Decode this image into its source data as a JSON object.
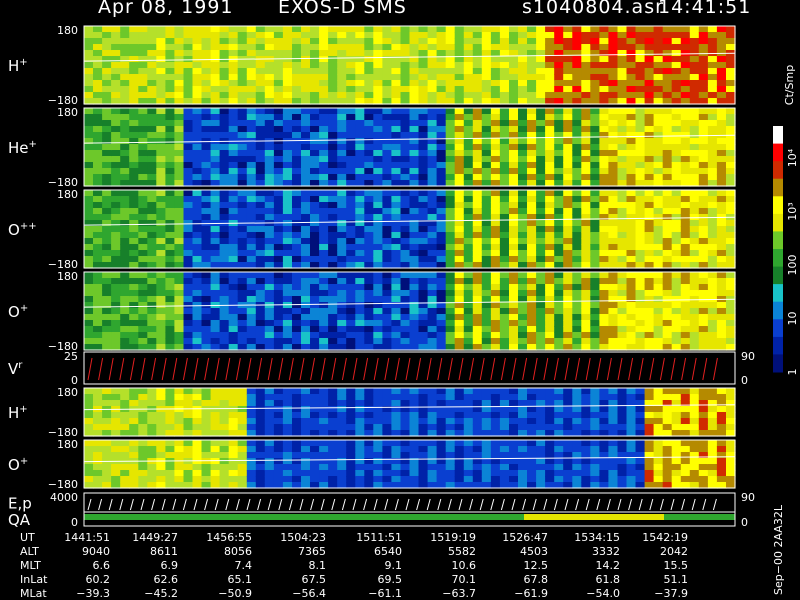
{
  "header": {
    "date": "Apr 08, 1991",
    "instrument": "EXOS-D SMS",
    "file": "s1040804.asr",
    "time": "14:41:51"
  },
  "colors": {
    "panel_bg": "#000000",
    "grid_line": "#ffffff",
    "low": "#001a8c",
    "mid": "#2fa62f",
    "high": "#ffff00",
    "peak": "#e00000"
  },
  "chart_data": {
    "type": "heatmap",
    "panels": [
      {
        "label": "H",
        "sup": "+",
        "ymax": "180",
        "ymin": "−180"
      },
      {
        "label": "He",
        "sup": "+",
        "ymax": "180",
        "ymin": "−180"
      },
      {
        "label": "O",
        "sup": "++",
        "ymax": "180",
        "ymin": "−180"
      },
      {
        "label": "O",
        "sup": "+",
        "ymax": "180",
        "ymin": "−180"
      },
      {
        "label": "V",
        "sup": "r",
        "ymax": "25",
        "ymin": "0",
        "right_max": "90",
        "right_min": "0"
      },
      {
        "label": "H",
        "sup": "+",
        "ymax": "180",
        "ymin": "−180"
      },
      {
        "label": "O",
        "sup": "+",
        "ymax": "180",
        "ymin": "−180"
      },
      {
        "label": "E,p",
        "sup": "",
        "ymax": "4000",
        "ymin": "",
        "right_max": "90"
      },
      {
        "label": "QA",
        "sup": "",
        "ymax": "",
        "ymin": "0",
        "right_min": "0"
      }
    ],
    "colorbar": {
      "unit": "Ct/Smp",
      "ticks": [
        "1",
        "10",
        "100",
        "10³",
        "10⁴"
      ]
    },
    "table": {
      "rows": [
        {
          "name": "UT",
          "values": [
            "1441:51",
            "1449:27",
            "1456:55",
            "1504:23",
            "1511:51",
            "1519:19",
            "1526:47",
            "1534:15",
            "1542:19"
          ]
        },
        {
          "name": "ALT",
          "values": [
            "9040",
            "8611",
            "8056",
            "7365",
            "6540",
            "5582",
            "4503",
            "3332",
            "2042"
          ]
        },
        {
          "name": "MLT",
          "values": [
            "6.6",
            "6.9",
            "7.4",
            "8.1",
            "9.1",
            "10.6",
            "12.5",
            "14.2",
            "15.5"
          ]
        },
        {
          "name": "InLat",
          "values": [
            "60.2",
            "62.6",
            "65.1",
            "67.5",
            "69.5",
            "70.1",
            "67.8",
            "61.8",
            "51.1"
          ]
        },
        {
          "name": "MLat",
          "values": [
            "−39.3",
            "−45.2",
            "−50.9",
            "−56.4",
            "−61.1",
            "−63.7",
            "−61.9",
            "−54.0",
            "−37.9"
          ]
        }
      ]
    },
    "footer_note": "Sep−00 2AA32L"
  }
}
